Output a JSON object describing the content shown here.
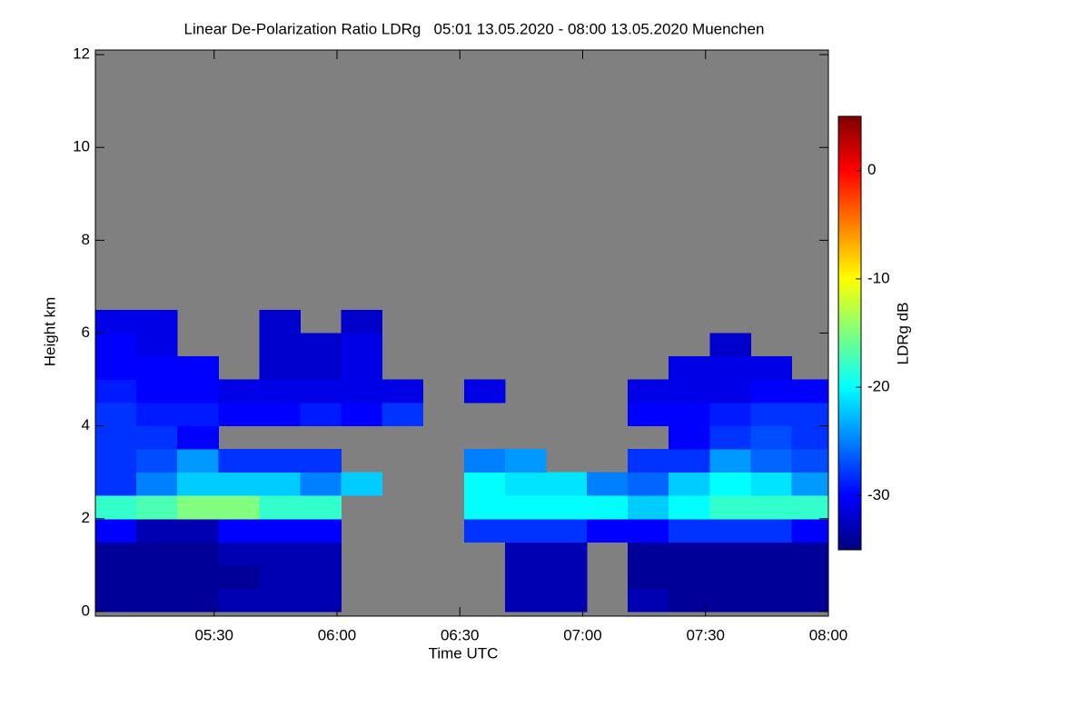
{
  "chart_data": {
    "type": "heatmap",
    "title": "Linear De-Polarization Ratio LDRg   05:01 13.05.2020 - 08:00 13.05.2020 Muenchen",
    "xlabel": "Time UTC",
    "ylabel": "Height km",
    "colorbar_label": "LDRg dB",
    "colormap": "jet",
    "missing_color": "#808080",
    "xlim": [
      301,
      480
    ],
    "ylim": [
      -0.1,
      12.1
    ],
    "clim": [
      -35,
      5
    ],
    "xticks": [
      {
        "value": 330,
        "label": "05:30"
      },
      {
        "value": 360,
        "label": "06:00"
      },
      {
        "value": 390,
        "label": "06:30"
      },
      {
        "value": 420,
        "label": "07:00"
      },
      {
        "value": 450,
        "label": "07:30"
      },
      {
        "value": 480,
        "label": "08:00"
      }
    ],
    "yticks": [
      0,
      2,
      4,
      6,
      8,
      10,
      12
    ],
    "cticks": [
      0,
      -10,
      -20,
      -30
    ],
    "x_bins": [
      301,
      311,
      321,
      331,
      341,
      351,
      361,
      371,
      381,
      391,
      401,
      411,
      421,
      431,
      441,
      451,
      461,
      471,
      480
    ],
    "y_bins": [
      0,
      0.5,
      1,
      1.5,
      2,
      2.5,
      3,
      3.5,
      4,
      4.5,
      5,
      5.5,
      6,
      6.5
    ],
    "z": [
      [
        -34,
        -34,
        -34,
        -33,
        -33,
        -33,
        null,
        null,
        null,
        null,
        -33,
        -33,
        null,
        -33,
        -34,
        -34,
        -34,
        -34
      ],
      [
        -34,
        -34,
        -34,
        -34,
        -33,
        -33,
        null,
        null,
        null,
        null,
        -33,
        -33,
        null,
        -34,
        -34,
        -34,
        -34,
        -34
      ],
      [
        -34,
        -34,
        -34,
        -33,
        -33,
        -33,
        null,
        null,
        null,
        null,
        -33,
        -33,
        null,
        -34,
        -34,
        -34,
        -34,
        -34
      ],
      [
        -30,
        -33,
        -33,
        -30,
        -30,
        -30,
        null,
        null,
        null,
        -28,
        -28,
        -28,
        -30,
        -30,
        -28,
        -28,
        -28,
        -30
      ],
      [
        -18,
        -17,
        -15,
        -15,
        -18,
        -18,
        null,
        null,
        null,
        -20,
        -20,
        -20,
        -20,
        -22,
        -20,
        -18,
        -18,
        -18
      ],
      [
        -28,
        -25,
        -22,
        -22,
        -22,
        -25,
        -22,
        null,
        null,
        -20,
        -21,
        -21,
        -25,
        -26,
        -22,
        -20,
        -21,
        -24
      ],
      [
        -28,
        -27,
        -24,
        -28,
        -28,
        -28,
        null,
        null,
        null,
        -25,
        -24,
        null,
        null,
        -28,
        -28,
        -24,
        -26,
        -27
      ],
      [
        -28,
        -28,
        -30,
        null,
        null,
        null,
        null,
        null,
        null,
        null,
        null,
        null,
        null,
        null,
        -30,
        -28,
        -27,
        -28
      ],
      [
        -28,
        -29,
        -29,
        -30,
        -30,
        -29,
        -30,
        -28,
        null,
        null,
        null,
        null,
        null,
        -30,
        -30,
        -29,
        -28,
        -28
      ],
      [
        -29,
        -30,
        -30,
        -31,
        -31,
        -31,
        -31,
        -31,
        null,
        -31,
        null,
        null,
        null,
        -31,
        -31,
        -31,
        -30,
        -30
      ],
      [
        -30,
        -30,
        -30,
        null,
        -32,
        -32,
        -31,
        null,
        null,
        null,
        null,
        null,
        null,
        null,
        -31,
        -31,
        -31,
        null
      ],
      [
        -30,
        -31,
        null,
        null,
        -32,
        -32,
        -31,
        null,
        null,
        null,
        null,
        null,
        null,
        null,
        null,
        -32,
        null,
        null
      ],
      [
        -31,
        -31,
        null,
        null,
        -32,
        null,
        -32,
        null,
        null,
        null,
        null,
        null,
        null,
        null,
        null,
        null,
        null,
        null
      ]
    ]
  }
}
